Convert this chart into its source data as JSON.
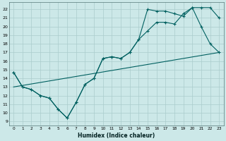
{
  "xlabel": "Humidex (Indice chaleur)",
  "xlim": [
    -0.5,
    23.5
  ],
  "ylim": [
    8.5,
    22.8
  ],
  "yticks": [
    9,
    10,
    11,
    12,
    13,
    14,
    15,
    16,
    17,
    18,
    19,
    20,
    21,
    22
  ],
  "xticks": [
    0,
    1,
    2,
    3,
    4,
    5,
    6,
    7,
    8,
    9,
    10,
    11,
    12,
    13,
    14,
    15,
    16,
    17,
    18,
    19,
    20,
    21,
    22,
    23
  ],
  "xtick_labels": [
    "0",
    "1",
    "2",
    "3",
    "4",
    "5",
    "6",
    "7",
    "8",
    "9",
    "10",
    "11",
    "12",
    "13",
    "14",
    "15",
    "16",
    "17",
    "18",
    "19",
    "20",
    "21",
    "22",
    "23"
  ],
  "background_color": "#cce8e8",
  "grid_color": "#aacccc",
  "line_color": "#006060",
  "line1_x": [
    0,
    1,
    2,
    3,
    4,
    5,
    6,
    7,
    8,
    9,
    10,
    11,
    12,
    13,
    14,
    15,
    16,
    17,
    18,
    19,
    20,
    21,
    22,
    23
  ],
  "line1_y": [
    14.7,
    13.0,
    12.7,
    12.0,
    11.7,
    10.4,
    9.4,
    11.2,
    13.3,
    14.0,
    16.3,
    16.5,
    16.3,
    17.0,
    18.5,
    22.0,
    21.8,
    21.8,
    21.5,
    21.2,
    22.2,
    20.0,
    18.0,
    17.0
  ],
  "line2_x": [
    0,
    1,
    2,
    3,
    4,
    5,
    6,
    7,
    8,
    9,
    10,
    11,
    12,
    13,
    14,
    15,
    16,
    17,
    18,
    19,
    20,
    21,
    22,
    23
  ],
  "line2_y": [
    14.7,
    13.0,
    12.7,
    12.0,
    11.7,
    10.4,
    9.4,
    11.2,
    13.3,
    14.0,
    16.3,
    16.5,
    16.3,
    17.0,
    18.5,
    19.5,
    20.5,
    20.5,
    20.3,
    21.5,
    22.2,
    22.2,
    22.2,
    21.0
  ],
  "line3_x": [
    0,
    23
  ],
  "line3_y": [
    13.0,
    17.0
  ]
}
